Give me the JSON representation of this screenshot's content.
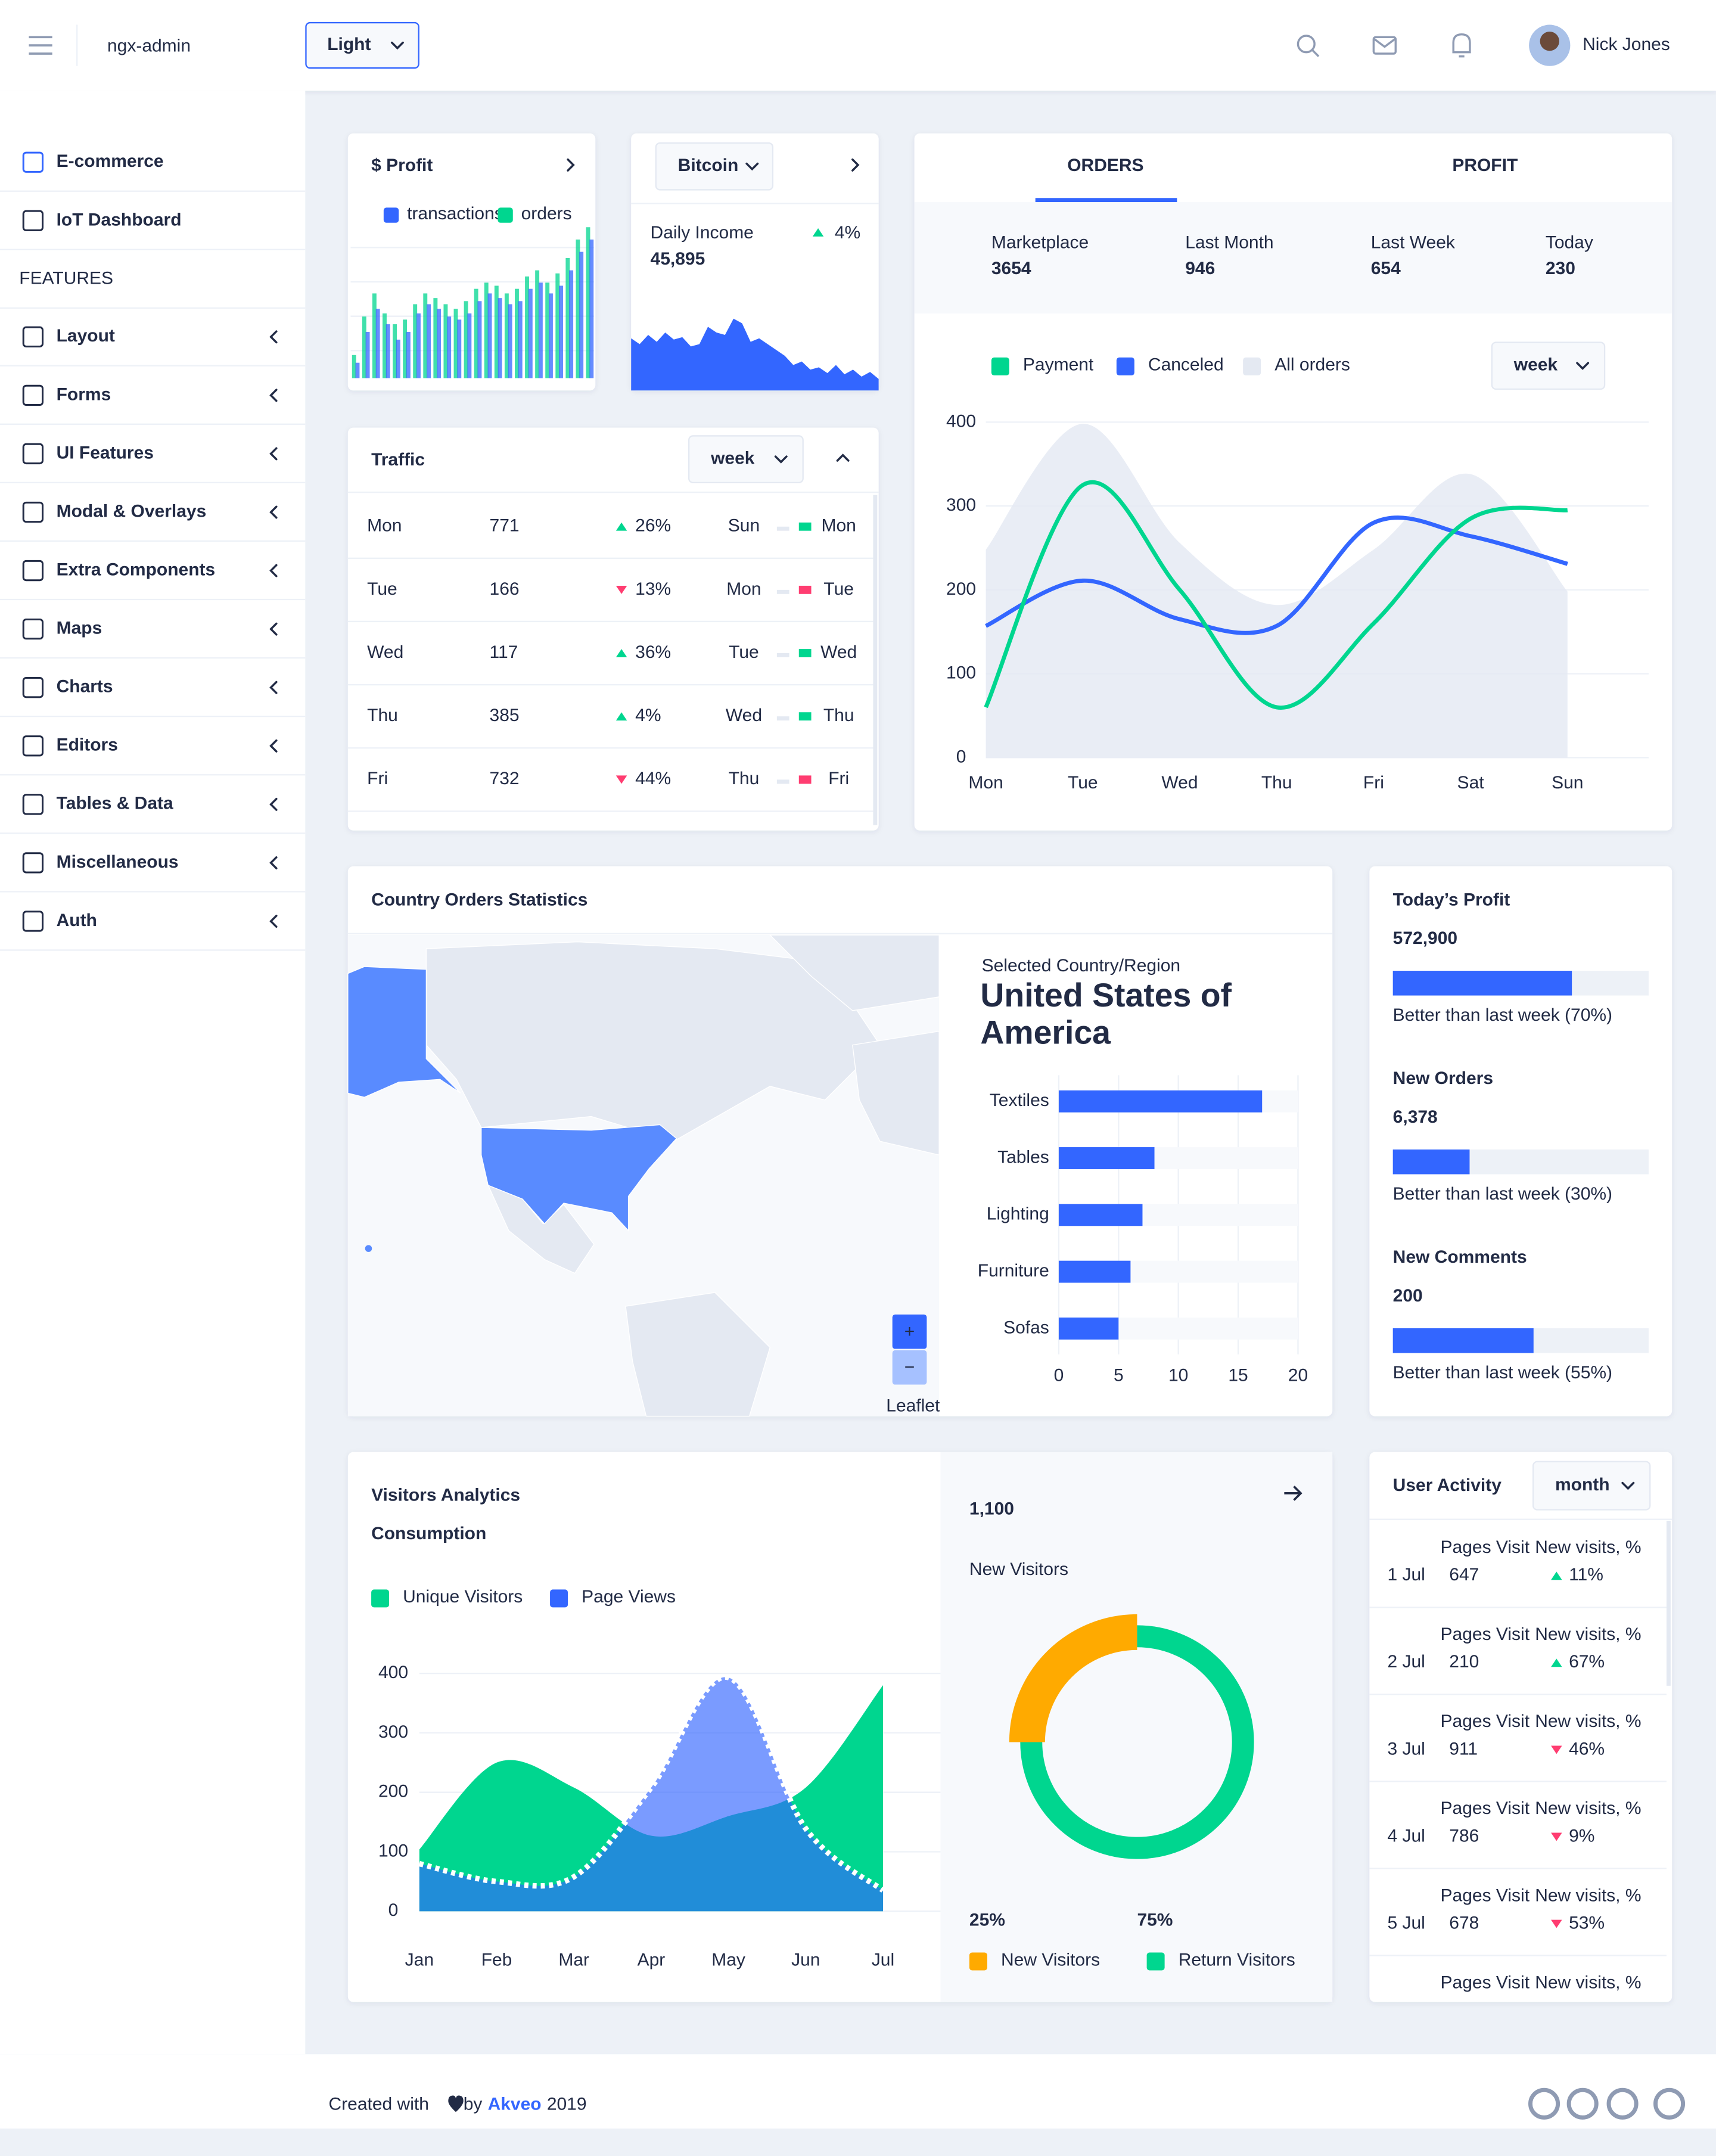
{
  "header": {
    "brand": "ngx-admin",
    "theme": "Light",
    "user": "Nick Jones"
  },
  "sidebar": {
    "items": [
      "E-commerce",
      "IoT Dashboard"
    ],
    "active": 0,
    "section": "FEATURES",
    "features": [
      "Layout",
      "Forms",
      "UI Features",
      "Modal & Overlays",
      "Extra Components",
      "Maps",
      "Charts",
      "Editors",
      "Tables & Data",
      "Miscellaneous",
      "Auth"
    ]
  },
  "profit_card": {
    "title": "$ Profit"
  },
  "bitcoin_card": {
    "currency": "Bitcoin",
    "label": "Daily Income",
    "value": "45,895",
    "delta": "4%",
    "trend": "up"
  },
  "traffic": {
    "title": "Traffic",
    "period": "week",
    "rows": [
      {
        "day": "Mon",
        "value": 771,
        "delta": "26%",
        "trend": "up",
        "prev": "Sun",
        "current": "Mon"
      },
      {
        "day": "Tue",
        "value": 166,
        "delta": "13%",
        "trend": "down",
        "prev": "Mon",
        "current": "Tue"
      },
      {
        "day": "Wed",
        "value": 117,
        "delta": "36%",
        "trend": "up",
        "prev": "Tue",
        "current": "Wed"
      },
      {
        "day": "Thu",
        "value": 385,
        "delta": "4%",
        "trend": "up",
        "prev": "Wed",
        "current": "Thu"
      },
      {
        "day": "Fri",
        "value": 732,
        "delta": "44%",
        "trend": "down",
        "prev": "Thu",
        "current": "Fri"
      }
    ]
  },
  "orders_card": {
    "tabs": [
      "ORDERS",
      "PROFIT"
    ],
    "period": "week",
    "stats": [
      {
        "label": "Marketplace",
        "value": 3654
      },
      {
        "label": "Last Month",
        "value": 946
      },
      {
        "label": "Last Week",
        "value": 654
      },
      {
        "label": "Today",
        "value": 230
      }
    ]
  },
  "country_card": {
    "title": "Country Orders Statistics",
    "caption": "Selected Country/Region",
    "country": "United States of America",
    "zoom_in": "+",
    "zoom_out": "−",
    "attribution": "Leaflet"
  },
  "stats_cards": [
    {
      "title": "Today’s Profit",
      "value": "572,900",
      "progress": 70,
      "caption": "Better than last week (70%)"
    },
    {
      "title": "New Orders",
      "value": "6,378",
      "progress": 30,
      "caption": "Better than last week (30%)"
    },
    {
      "title": "New Comments",
      "value": "200",
      "progress": 55,
      "caption": "Better than last week (55%)"
    }
  ],
  "visitors_card": {
    "title": "Visitors Analytics",
    "subtitle": "Consumption",
    "total": "1,100",
    "total_label": "New Visitors"
  },
  "user_activity": {
    "title": "User Activity",
    "period": "month",
    "col_pages": "Pages Visit",
    "col_new": "New visits, %",
    "rows": [
      {
        "date": "1 Jul",
        "pages": 647,
        "delta": "11%",
        "trend": "up"
      },
      {
        "date": "2 Jul",
        "pages": 210,
        "delta": "67%",
        "trend": "up"
      },
      {
        "date": "3 Jul",
        "pages": 911,
        "delta": "46%",
        "trend": "down"
      },
      {
        "date": "4 Jul",
        "pages": 786,
        "delta": "9%",
        "trend": "down"
      },
      {
        "date": "5 Jul",
        "pages": 678,
        "delta": "53%",
        "trend": "down"
      }
    ]
  },
  "footer": {
    "text": "Created with",
    "by": "by",
    "link": "Akveo",
    "year": "2019"
  },
  "chart_data": [
    {
      "type": "bar",
      "ylim": [
        0,
        100
      ],
      "series": [
        {
          "name": "transactions",
          "color": "#3366ff",
          "values": [
            10,
            30,
            45,
            35,
            25,
            30,
            42,
            48,
            45,
            40,
            38,
            42,
            50,
            55,
            52,
            48,
            50,
            58,
            62,
            55,
            60,
            70,
            82,
            90
          ]
        },
        {
          "name": "orders",
          "color": "#00d68f",
          "values": [
            15,
            40,
            55,
            42,
            35,
            38,
            48,
            55,
            52,
            48,
            45,
            50,
            58,
            62,
            60,
            55,
            58,
            66,
            70,
            62,
            68,
            78,
            90,
            98
          ]
        }
      ]
    },
    {
      "type": "area",
      "ylim": [
        0,
        70
      ],
      "color": "#3366ff",
      "values": [
        45,
        40,
        48,
        42,
        50,
        44,
        46,
        38,
        40,
        55,
        50,
        48,
        62,
        58,
        42,
        45,
        40,
        35,
        30,
        22,
        25,
        18,
        20,
        15,
        22,
        14,
        18,
        12,
        16,
        10
      ]
    },
    {
      "type": "line",
      "categories": [
        "Mon",
        "Tue",
        "Wed",
        "Thu",
        "Fri",
        "Sat",
        "Sun"
      ],
      "ylim": [
        0,
        400
      ],
      "yticks": [
        0,
        100,
        200,
        300,
        400
      ],
      "grid": true,
      "series": [
        {
          "name": "Payment",
          "color": "#00d68f",
          "values": [
            60,
            325,
            200,
            60,
            160,
            285,
            295
          ]
        },
        {
          "name": "Canceled",
          "color": "#3366ff",
          "values": [
            157,
            211,
            165,
            157,
            280,
            264,
            231
          ]
        },
        {
          "name": "All orders",
          "color": "#e4e9f2",
          "area": true,
          "values": [
            248,
            398,
            256,
            182,
            248,
            338,
            198
          ]
        }
      ]
    },
    {
      "type": "bar",
      "orientation": "horizontal",
      "categories": [
        "Textiles",
        "Tables",
        "Lighting",
        "Furniture",
        "Sofas"
      ],
      "values": [
        17,
        8,
        7,
        6,
        5
      ],
      "color": "#3366ff",
      "xlim": [
        0,
        20
      ],
      "xticks": [
        0,
        5,
        10,
        15,
        20
      ],
      "grid": true
    },
    {
      "type": "area",
      "categories": [
        "Jan",
        "Feb",
        "Mar",
        "Apr",
        "May",
        "Jun",
        "Jul"
      ],
      "ylim": [
        0,
        400
      ],
      "yticks": [
        0,
        100,
        200,
        300,
        400
      ],
      "grid": true,
      "series": [
        {
          "name": "Unique Visitors",
          "color": "#00d68f",
          "values": [
            104,
            250,
            208,
            127,
            160,
            208,
            380
          ]
        },
        {
          "name": "Page Views",
          "color": "#3366ff",
          "dashed": true,
          "values": [
            80,
            50,
            58,
            208,
            393,
            139,
            35
          ]
        }
      ]
    },
    {
      "type": "donut",
      "categories": [
        "New Visitors",
        "Return Visitors"
      ],
      "values": [
        25,
        75
      ],
      "value_labels": [
        "25%",
        "75%"
      ],
      "colors": [
        "#ffaa00",
        "#00d68f"
      ]
    }
  ]
}
